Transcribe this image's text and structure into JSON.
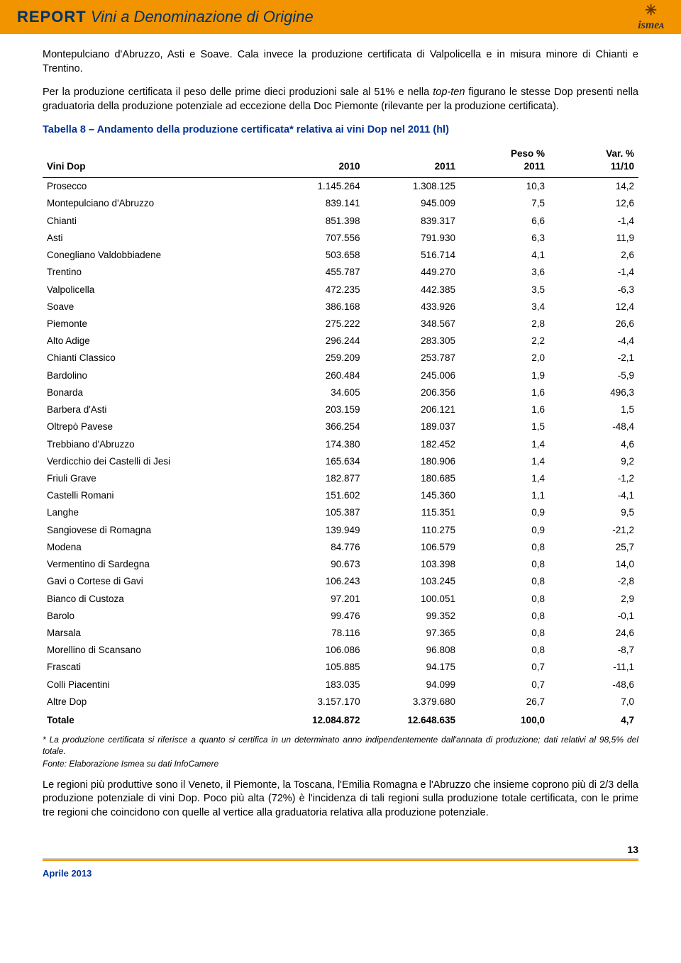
{
  "header": {
    "title_bold": "REPORT",
    "title_rest": "Vini a Denominazione di Origine",
    "logo_icon": "✳",
    "logo_text": "ismeᴀ"
  },
  "intro_para1": "Montepulciano d'Abruzzo, Asti e Soave. Cala invece la produzione certificata di Valpolicella e in misura minore di Chianti e Trentino.",
  "intro_para2_a": "Per la produzione certificata il peso delle prime dieci produzioni sale al 51% e nella ",
  "intro_para2_i": "top-ten",
  "intro_para2_b": " figurano le stesse Dop presenti nella graduatoria della produzione potenziale ad eccezione della Doc Piemonte (rilevante per la produzione certificata).",
  "table_caption": "Tabella 8 – Andamento della produzione certificata* relativa ai vini Dop nel 2011 (hl)",
  "columns": [
    "Vini Dop",
    "2010",
    "2011",
    "Peso % 2011",
    "Var. % 11/10"
  ],
  "col_header_split": {
    "c3_l1": "Peso %",
    "c3_l2": "2011",
    "c4_l1": "Var. %",
    "c4_l2": "11/10"
  },
  "rows": [
    [
      "Prosecco",
      "1.145.264",
      "1.308.125",
      "10,3",
      "14,2"
    ],
    [
      "Montepulciano d'Abruzzo",
      "839.141",
      "945.009",
      "7,5",
      "12,6"
    ],
    [
      "Chianti",
      "851.398",
      "839.317",
      "6,6",
      "-1,4"
    ],
    [
      "Asti",
      "707.556",
      "791.930",
      "6,3",
      "11,9"
    ],
    [
      "Conegliano Valdobbiadene",
      "503.658",
      "516.714",
      "4,1",
      "2,6"
    ],
    [
      "Trentino",
      "455.787",
      "449.270",
      "3,6",
      "-1,4"
    ],
    [
      "Valpolicella",
      "472.235",
      "442.385",
      "3,5",
      "-6,3"
    ],
    [
      "Soave",
      "386.168",
      "433.926",
      "3,4",
      "12,4"
    ],
    [
      "Piemonte",
      "275.222",
      "348.567",
      "2,8",
      "26,6"
    ],
    [
      "Alto Adige",
      "296.244",
      "283.305",
      "2,2",
      "-4,4"
    ],
    [
      "Chianti Classico",
      "259.209",
      "253.787",
      "2,0",
      "-2,1"
    ],
    [
      "Bardolino",
      "260.484",
      "245.006",
      "1,9",
      "-5,9"
    ],
    [
      "Bonarda",
      "34.605",
      "206.356",
      "1,6",
      "496,3"
    ],
    [
      "Barbera d'Asti",
      "203.159",
      "206.121",
      "1,6",
      "1,5"
    ],
    [
      "Oltrepò Pavese",
      "366.254",
      "189.037",
      "1,5",
      "-48,4"
    ],
    [
      "Trebbiano d'Abruzzo",
      "174.380",
      "182.452",
      "1,4",
      "4,6"
    ],
    [
      "Verdicchio dei Castelli di Jesi",
      "165.634",
      "180.906",
      "1,4",
      "9,2"
    ],
    [
      "Friuli Grave",
      "182.877",
      "180.685",
      "1,4",
      "-1,2"
    ],
    [
      "Castelli Romani",
      "151.602",
      "145.360",
      "1,1",
      "-4,1"
    ],
    [
      "Langhe",
      "105.387",
      "115.351",
      "0,9",
      "9,5"
    ],
    [
      "Sangiovese di Romagna",
      "139.949",
      "110.275",
      "0,9",
      "-21,2"
    ],
    [
      "Modena",
      "84.776",
      "106.579",
      "0,8",
      "25,7"
    ],
    [
      "Vermentino di Sardegna",
      "90.673",
      "103.398",
      "0,8",
      "14,0"
    ],
    [
      "Gavi o Cortese di Gavi",
      "106.243",
      "103.245",
      "0,8",
      "-2,8"
    ],
    [
      "Bianco di Custoza",
      "97.201",
      "100.051",
      "0,8",
      "2,9"
    ],
    [
      "Barolo",
      "99.476",
      "99.352",
      "0,8",
      "-0,1"
    ],
    [
      "Marsala",
      "78.116",
      "97.365",
      "0,8",
      "24,6"
    ],
    [
      "Morellino di Scansano",
      "106.086",
      "96.808",
      "0,8",
      "-8,7"
    ],
    [
      "Frascati",
      "105.885",
      "94.175",
      "0,7",
      "-11,1"
    ],
    [
      "Colli Piacentini",
      "183.035",
      "94.099",
      "0,7",
      "-48,6"
    ],
    [
      "Altre Dop",
      "3.157.170",
      "3.379.680",
      "26,7",
      "7,0"
    ]
  ],
  "total_row": [
    "Totale",
    "12.084.872",
    "12.648.635",
    "100,0",
    "4,7"
  ],
  "footnote": "* La produzione certificata si riferisce a quanto si certifica in un determinato anno indipendentemente dall'annata di produzione; dati relativi al 98,5% del totale.",
  "source": "Fonte: Elaborazione Ismea su dati InfoCamere",
  "outro": "Le regioni più produttive sono il Veneto, il Piemonte, la Toscana, l'Emilia Romagna e l'Abruzzo che insieme coprono più di 2/3 della produzione potenziale di vini Dop. Poco più alta (72%) è l'incidenza di tali regioni sulla produzione totale certificata, con le prime tre regioni che coincidono con quelle al vertice alla graduatoria relativa alla produzione potenziale.",
  "page_number": "13",
  "footer_date": "Aprile 2013",
  "col_widths": [
    "38%",
    "16%",
    "16%",
    "15%",
    "15%"
  ]
}
